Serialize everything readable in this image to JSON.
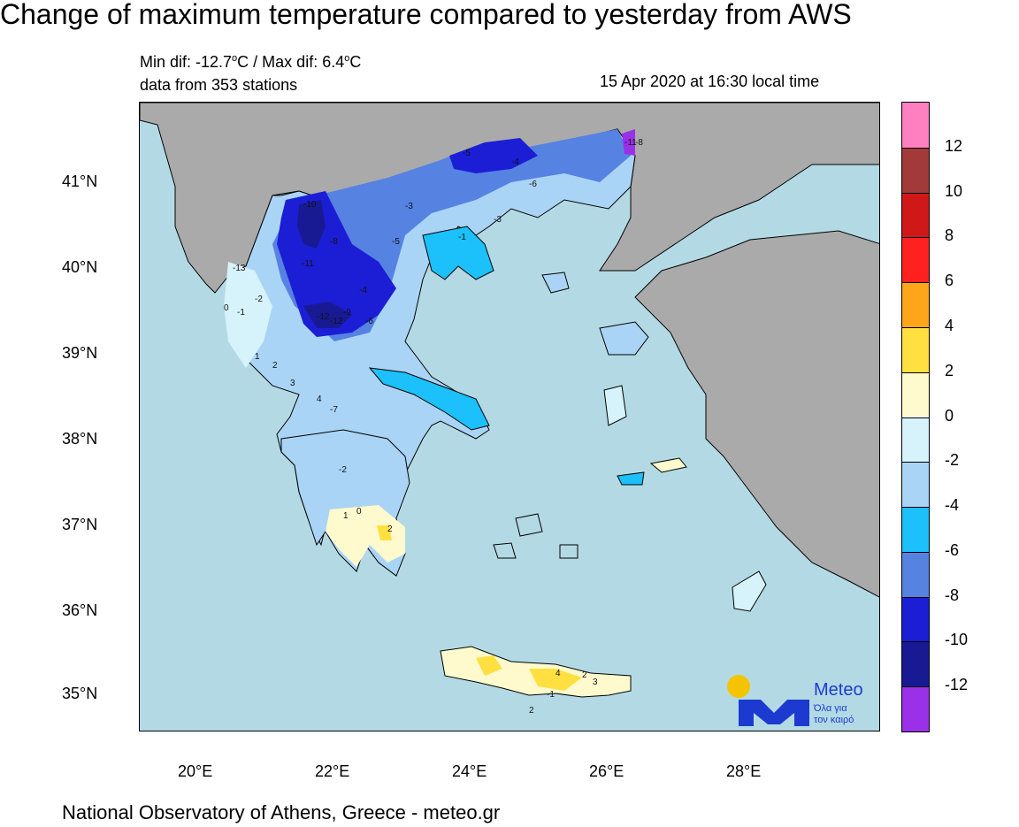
{
  "title": "Change of maximum temperature compared to yesterday from AWS",
  "stats": {
    "min_label": "Min dif: -12.7",
    "max_label": " / Max dif: 6.4",
    "degree_unit": "o",
    "celsius": "C",
    "stations": "data from 353 stations"
  },
  "timestamp": "15 Apr 2020 at 16:30 local time",
  "footer": "National Observatory of Athens, Greece - meteo.gr",
  "logo": {
    "name": "Meteo",
    "tagline_1": "Όλα για",
    "tagline_2": "τον καιρό",
    "icon": "meteo-m-sun-logo",
    "sun_color": "#f5c400",
    "m_color": "#1d3ad0"
  },
  "axes": {
    "lat_labels": [
      "41°N",
      "40°N",
      "39°N",
      "38°N",
      "37°N",
      "36°N",
      "35°N"
    ],
    "lon_labels": [
      "20°E",
      "22°E",
      "24°E",
      "26°E",
      "28°E"
    ]
  },
  "colorbar": {
    "labels": [
      "12",
      "10",
      "8",
      "6",
      "4",
      "2",
      "0",
      "-2",
      "-4",
      "-6",
      "-8",
      "-10",
      "-12"
    ],
    "colors": [
      "#ff80c0",
      "#a33a3a",
      "#d01818",
      "#ff2020",
      "#ffa51a",
      "#ffe040",
      "#fffacd",
      "#d6f2fb",
      "#aad4f6",
      "#1cc0fa",
      "#5682e2",
      "#1c1ed6",
      "#181a94",
      "#9a30e8"
    ]
  },
  "map_colors": {
    "sea": "#b3dae4",
    "land_outside": "#aaaaaa"
  },
  "station_values": [
    "-10",
    "-8",
    "-11",
    "-12",
    "-12",
    "-9",
    "-6",
    "-4",
    "-5",
    "-3",
    "-2",
    "-1",
    "0",
    "1",
    "2",
    "3",
    "4",
    "-7",
    "-13",
    "-11",
    "-8",
    "-5",
    "-4",
    "-6",
    "-3",
    "-1",
    "2",
    "4",
    "2",
    "3",
    "-1",
    "-2",
    "1",
    "0",
    "2"
  ]
}
